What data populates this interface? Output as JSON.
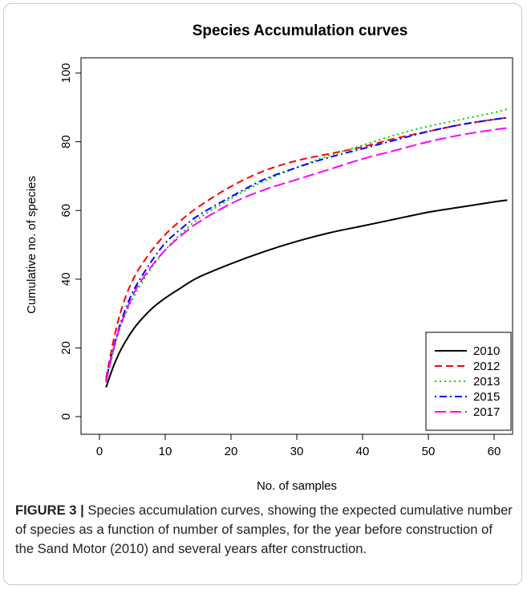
{
  "chart_data": {
    "type": "line",
    "title": "Species Accumulation curves",
    "xlabel": "No. of samples",
    "ylabel": "Cumulative no. of species",
    "xlim": [
      0,
      62
    ],
    "ylim": [
      0,
      100
    ],
    "xticks": [
      0,
      10,
      20,
      30,
      40,
      50,
      60
    ],
    "yticks": [
      0,
      20,
      40,
      60,
      80,
      100
    ],
    "grid": false,
    "legend_position": "bottom-right",
    "x": [
      1,
      2,
      3,
      4,
      5,
      6,
      8,
      10,
      12,
      15,
      20,
      25,
      30,
      35,
      40,
      45,
      50,
      55,
      60,
      62
    ],
    "series": [
      {
        "name": "2010",
        "color": "#000000",
        "dash": "solid",
        "values": [
          8.5,
          14,
          18.5,
          22,
          25,
          27.5,
          31.5,
          34.5,
          37,
          40.5,
          44.5,
          48,
          51,
          53.5,
          55.5,
          57.5,
          59.5,
          61,
          62.5,
          63
        ]
      },
      {
        "name": "2012",
        "color": "#ff0000",
        "dash": "dashed",
        "values": [
          11,
          21,
          29,
          35,
          39.5,
          43,
          48.5,
          53,
          56.5,
          61,
          67,
          71.5,
          74.5,
          76.5,
          78.5,
          81,
          83,
          85,
          86.5,
          87
        ]
      },
      {
        "name": "2013",
        "color": "#00cc00",
        "dash": "dotted",
        "values": [
          10,
          18,
          25,
          30,
          34,
          37.5,
          43.5,
          48.5,
          52.5,
          57.5,
          63.5,
          68.5,
          72.5,
          76,
          79,
          82,
          84.5,
          86.5,
          88.5,
          89.5
        ]
      },
      {
        "name": "2015",
        "color": "#0000ff",
        "dash": "dotdash",
        "values": [
          10.5,
          19,
          26,
          31.5,
          36,
          39.5,
          45.5,
          50.5,
          54,
          58.5,
          64,
          69,
          72.5,
          75.5,
          78,
          80.5,
          83,
          85,
          86.5,
          87
        ]
      },
      {
        "name": "2017",
        "color": "#ff00ff",
        "dash": "longdash",
        "values": [
          10,
          18.5,
          25.5,
          30.5,
          35,
          38.5,
          44,
          48.5,
          52,
          56.5,
          62,
          66,
          69,
          72,
          75,
          77.5,
          80,
          82,
          83.5,
          84
        ]
      }
    ]
  },
  "caption": {
    "label": "FIGURE 3 |",
    "text": " Species accumulation curves, showing the expected cumulative number of species as a function of number of samples, for the year before construction of the Sand Motor (2010) and several years after construction."
  }
}
